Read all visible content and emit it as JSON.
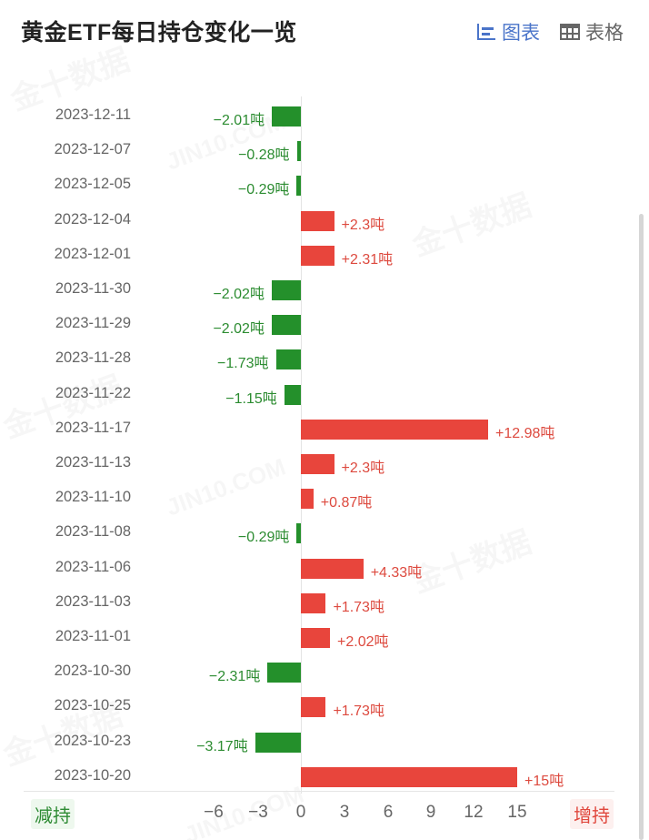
{
  "header": {
    "title": "黄金ETF每日持仓变化一览",
    "views": [
      {
        "label": "图表",
        "icon": "bar-chart-icon",
        "active": true
      },
      {
        "label": "表格",
        "icon": "table-grid-icon",
        "active": false
      }
    ]
  },
  "legend": {
    "negative_label": "减持",
    "positive_label": "增持"
  },
  "axis": {
    "ticks": [
      "-6",
      "-3",
      "0",
      "3",
      "6",
      "9",
      "12",
      "15"
    ]
  },
  "watermarks": [
    "金十数据",
    "JIN10.COM"
  ],
  "colors": {
    "positive": "#e8453c",
    "negative": "#24902b",
    "accent": "#4a74c9"
  },
  "chart_data": {
    "type": "bar",
    "orientation": "horizontal",
    "title": "黄金ETF每日持仓变化一览",
    "unit": "吨",
    "xlabel": "",
    "ylabel": "",
    "xlim": [
      -6,
      15
    ],
    "x_ticks": [
      -6,
      -3,
      0,
      3,
      6,
      9,
      12,
      15
    ],
    "grid": false,
    "legend": {
      "negative": "减持",
      "positive": "增持",
      "position": "bottom"
    },
    "categories": [
      "2023-12-11",
      "2023-12-07",
      "2023-12-05",
      "2023-12-04",
      "2023-12-01",
      "2023-11-30",
      "2023-11-29",
      "2023-11-28",
      "2023-11-22",
      "2023-11-17",
      "2023-11-13",
      "2023-11-10",
      "2023-11-08",
      "2023-11-06",
      "2023-11-03",
      "2023-11-01",
      "2023-10-30",
      "2023-10-25",
      "2023-10-23",
      "2023-10-20"
    ],
    "values": [
      -2.01,
      -0.28,
      -0.29,
      2.3,
      2.31,
      -2.02,
      -2.02,
      -1.73,
      -1.15,
      12.98,
      2.3,
      0.87,
      -0.29,
      4.33,
      1.73,
      2.02,
      -2.31,
      1.73,
      -3.17,
      15
    ],
    "labels": [
      "-2.01吨",
      "-0.28吨",
      "-0.29吨",
      "+2.3吨",
      "+2.31吨",
      "-2.02吨",
      "-2.02吨",
      "-1.73吨",
      "-1.15吨",
      "+12.98吨",
      "+2.3吨",
      "+0.87吨",
      "-0.29吨",
      "+4.33吨",
      "+1.73吨",
      "+2.02吨",
      "-2.31吨",
      "+1.73吨",
      "-3.17吨",
      "+15吨"
    ]
  }
}
